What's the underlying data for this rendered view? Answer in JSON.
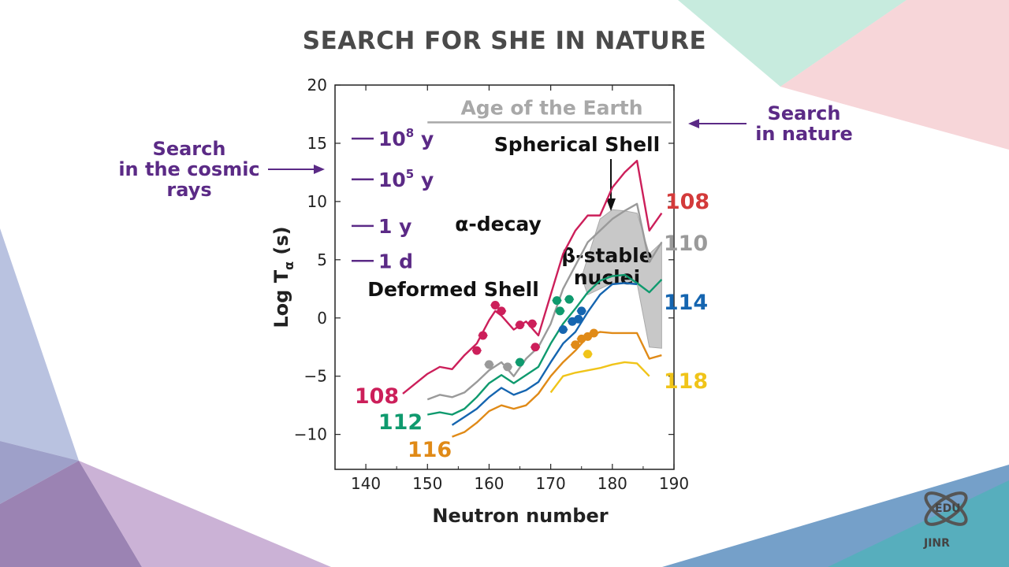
{
  "title": "SEARCH FOR SHE IN NATURE",
  "colors": {
    "purple": "#5b2a86",
    "n108": "#cc1f5a",
    "n108_label": "#d33a3a",
    "n110": "#9a9a9a",
    "n112": "#0f9a6e",
    "n114": "#1565b0",
    "n116": "#e08a17",
    "n118": "#f0c419",
    "band": "#c8c8c8",
    "earth": "#a8a8a8"
  },
  "annotations": {
    "search_cosmic": [
      "Search",
      "in the cosmic",
      "rays"
    ],
    "search_nature": [
      "Search",
      "in nature"
    ]
  },
  "logo": {
    "edu": "EDU",
    "jinr": "JINR"
  },
  "chart_data": {
    "type": "line",
    "xlabel": "Neutron number",
    "ylabel": "Log T",
    "ylabel_sub": "α",
    "ylabel_unit": "(s)",
    "xlim": [
      135,
      190
    ],
    "ylim": [
      -13,
      20
    ],
    "xticks": [
      140,
      150,
      160,
      170,
      180,
      190
    ],
    "yticks": [
      -10,
      -5,
      0,
      5,
      10,
      15,
      20
    ],
    "ytick_labels": [
      "−10",
      "−5",
      "0",
      "5",
      "10",
      "15",
      "20"
    ],
    "time_marks": [
      {
        "label": "10",
        "sup": "8",
        "unit": "y",
        "y": 15.4
      },
      {
        "label": "10",
        "sup": "5",
        "unit": "y",
        "y": 11.9
      },
      {
        "label": "1 y",
        "y": 7.9
      },
      {
        "label": "1 d",
        "y": 4.9
      }
    ],
    "earth_line": {
      "label": "Age of the Earth",
      "y": 16.8,
      "x": [
        150,
        187
      ]
    },
    "region_labels": {
      "spherical": "Spherical Shell",
      "alpha_decay": "α-decay",
      "deformed": "Deformed Shell",
      "beta_stable_1": "β-stable",
      "beta_stable_2": "nuclei"
    },
    "series": [
      {
        "name": "108",
        "side": "left",
        "color": "#cc1f5a",
        "x": [
          146,
          150,
          152,
          154,
          156,
          158,
          160,
          161,
          162,
          164,
          166,
          168,
          170,
          172,
          174,
          176,
          178,
          180,
          182,
          184,
          186,
          188
        ],
        "y": [
          -6.5,
          -4.8,
          -4.2,
          -4.4,
          -3.2,
          -2.2,
          -0.2,
          0.6,
          0.2,
          -1.0,
          -0.3,
          -1.5,
          2.0,
          5.5,
          7.5,
          8.8,
          8.8,
          11.2,
          12.5,
          13.5,
          7.5,
          9.0
        ]
      },
      {
        "name": "110",
        "side": "right",
        "color": "#9a9a9a",
        "x": [
          150,
          152,
          154,
          156,
          158,
          160,
          162,
          164,
          166,
          168,
          170,
          172,
          174,
          176,
          178,
          180,
          182,
          184,
          186,
          188
        ],
        "y": [
          -7.0,
          -6.6,
          -6.8,
          -6.4,
          -5.5,
          -4.5,
          -3.8,
          -5.0,
          -3.5,
          -2.5,
          -0.5,
          2.5,
          4.5,
          6.5,
          7.5,
          8.5,
          9.2,
          9.8,
          4.8,
          6.5
        ]
      },
      {
        "name": "112",
        "side": "left",
        "color": "#0f9a6e",
        "x": [
          150,
          152,
          154,
          156,
          158,
          160,
          162,
          164,
          166,
          168,
          170,
          172,
          174,
          176,
          178,
          180,
          182,
          184,
          186,
          188
        ],
        "y": [
          -8.3,
          -8.1,
          -8.3,
          -7.8,
          -6.8,
          -5.6,
          -4.9,
          -5.6,
          -4.9,
          -4.2,
          -2.2,
          -0.5,
          0.8,
          2.2,
          3.2,
          3.6,
          3.7,
          3.0,
          2.2,
          3.3
        ]
      },
      {
        "name": "114",
        "side": "right",
        "color": "#1565b0",
        "x": [
          154,
          156,
          158,
          160,
          162,
          164,
          166,
          168,
          170,
          172,
          174,
          176,
          178,
          180,
          182,
          184
        ],
        "y": [
          -9.2,
          -8.5,
          -7.8,
          -6.8,
          -6.0,
          -6.6,
          -6.2,
          -5.5,
          -3.8,
          -2.2,
          -1.2,
          0.5,
          2.0,
          2.9,
          3.0,
          2.9
        ]
      },
      {
        "name": "116",
        "side": "left",
        "color": "#e08a17",
        "x": [
          154,
          156,
          158,
          160,
          162,
          164,
          166,
          168,
          170,
          172,
          174,
          176,
          178,
          180,
          182,
          184,
          186,
          188
        ],
        "y": [
          -10.2,
          -9.8,
          -9.0,
          -8.0,
          -7.5,
          -7.8,
          -7.5,
          -6.5,
          -5.0,
          -3.8,
          -2.8,
          -1.6,
          -1.2,
          -1.3,
          -1.3,
          -1.3,
          -3.5,
          -3.2
        ]
      },
      {
        "name": "118",
        "side": "right",
        "color": "#f0c419",
        "x": [
          170,
          172,
          174,
          176,
          178,
          180,
          182,
          184,
          186
        ],
        "y": [
          -6.4,
          -5.0,
          -4.7,
          -4.5,
          -4.3,
          -4.0,
          -3.8,
          -3.9,
          -5.0
        ]
      }
    ],
    "points": [
      {
        "n": "108",
        "x": 158,
        "y": -2.8
      },
      {
        "n": "108",
        "x": 159,
        "y": -1.5
      },
      {
        "n": "108",
        "x": 161,
        "y": 1.1
      },
      {
        "n": "108",
        "x": 162,
        "y": 0.6
      },
      {
        "n": "108",
        "x": 165,
        "y": -0.6
      },
      {
        "n": "108",
        "x": 167,
        "y": -0.5
      },
      {
        "n": "108",
        "x": 167.5,
        "y": -2.5
      },
      {
        "n": "110",
        "x": 160,
        "y": -4.0
      },
      {
        "n": "110",
        "x": 163,
        "y": -4.2
      },
      {
        "n": "112",
        "x": 165,
        "y": -3.8
      },
      {
        "n": "112",
        "x": 171,
        "y": 1.5
      },
      {
        "n": "112",
        "x": 171.5,
        "y": 0.6
      },
      {
        "n": "112",
        "x": 173,
        "y": 1.6
      },
      {
        "n": "114",
        "x": 172,
        "y": -1.0
      },
      {
        "n": "114",
        "x": 173.5,
        "y": -0.3
      },
      {
        "n": "114",
        "x": 174.5,
        "y": -0.1
      },
      {
        "n": "114",
        "x": 175,
        "y": 0.6
      },
      {
        "n": "116",
        "x": 174,
        "y": -2.3
      },
      {
        "n": "116",
        "x": 175,
        "y": -1.8
      },
      {
        "n": "116",
        "x": 176,
        "y": -1.6
      },
      {
        "n": "116",
        "x": 177,
        "y": -1.3
      },
      {
        "n": "118",
        "x": 176,
        "y": -3.1
      }
    ],
    "beta_band": {
      "x": [
        175,
        178,
        180,
        182,
        184,
        186,
        188,
        188,
        186,
        184,
        182,
        180,
        178,
        176,
        175
      ],
      "y": [
        3.5,
        8.5,
        9.3,
        9.2,
        9.0,
        5.5,
        6.5,
        -2.6,
        -2.5,
        3.0,
        3.0,
        3.0,
        2.5,
        2.0,
        3.5
      ]
    }
  }
}
